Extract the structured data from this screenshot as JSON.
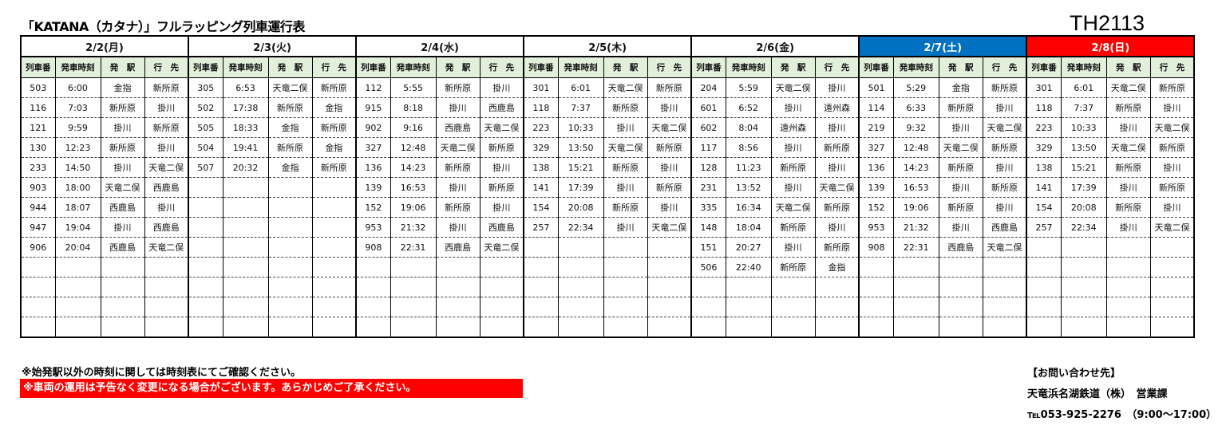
{
  "title": "「KATANA（カタナ）」フルラッピング列車運行表",
  "code": "TH2113",
  "columns": [
    "列車番",
    "発車時刻",
    "発　駅",
    "行　先"
  ],
  "colors": {
    "saturday": "#0070c0",
    "sunday": "#ff0000",
    "header_bg": "#e2efda",
    "notice_bg": "#ff0000"
  },
  "days": [
    {
      "label": "2/2(月)",
      "rows": [
        [
          "503",
          "6:00",
          "金指",
          "新所原"
        ],
        [
          "116",
          "7:03",
          "新所原",
          "掛川"
        ],
        [
          "121",
          "9:59",
          "掛川",
          "新所原"
        ],
        [
          "130",
          "12:23",
          "新所原",
          "掛川"
        ],
        [
          "233",
          "14:50",
          "掛川",
          "天竜二俣"
        ],
        [
          "903",
          "18:00",
          "天竜二俣",
          "西鹿島"
        ],
        [
          "944",
          "18:07",
          "西鹿島",
          "掛川"
        ],
        [
          "947",
          "19:04",
          "掛川",
          "西鹿島"
        ],
        [
          "906",
          "20:04",
          "西鹿島",
          "天竜二俣"
        ]
      ]
    },
    {
      "label": "2/3(火)",
      "rows": [
        [
          "305",
          "6:53",
          "天竜二俣",
          "新所原"
        ],
        [
          "502",
          "17:38",
          "新所原",
          "金指"
        ],
        [
          "505",
          "18:33",
          "金指",
          "新所原"
        ],
        [
          "504",
          "19:41",
          "新所原",
          "金指"
        ],
        [
          "507",
          "20:32",
          "金指",
          "新所原"
        ]
      ]
    },
    {
      "label": "2/4(水)",
      "rows": [
        [
          "112",
          "5:55",
          "新所原",
          "掛川"
        ],
        [
          "915",
          "8:18",
          "掛川",
          "西鹿島"
        ],
        [
          "902",
          "9:16",
          "西鹿島",
          "天竜二俣"
        ],
        [
          "327",
          "12:48",
          "天竜二俣",
          "新所原"
        ],
        [
          "136",
          "14:23",
          "新所原",
          "掛川"
        ],
        [
          "139",
          "16:53",
          "掛川",
          "新所原"
        ],
        [
          "152",
          "19:06",
          "新所原",
          "掛川"
        ],
        [
          "953",
          "21:32",
          "掛川",
          "西鹿島"
        ],
        [
          "908",
          "22:31",
          "西鹿島",
          "天竜二俣"
        ]
      ]
    },
    {
      "label": "2/5(木)",
      "rows": [
        [
          "301",
          "6:01",
          "天竜二俣",
          "新所原"
        ],
        [
          "118",
          "7:37",
          "新所原",
          "掛川"
        ],
        [
          "223",
          "10:33",
          "掛川",
          "天竜二俣"
        ],
        [
          "329",
          "13:50",
          "天竜二俣",
          "新所原"
        ],
        [
          "138",
          "15:21",
          "新所原",
          "掛川"
        ],
        [
          "141",
          "17:39",
          "掛川",
          "新所原"
        ],
        [
          "154",
          "20:08",
          "新所原",
          "掛川"
        ],
        [
          "257",
          "22:34",
          "掛川",
          "天竜二俣"
        ]
      ]
    },
    {
      "label": "2/6(金)",
      "rows": [
        [
          "204",
          "5:59",
          "天竜二俣",
          "掛川"
        ],
        [
          "601",
          "6:52",
          "掛川",
          "遠州森"
        ],
        [
          "602",
          "8:04",
          "遠州森",
          "掛川"
        ],
        [
          "117",
          "8:56",
          "掛川",
          "新所原"
        ],
        [
          "128",
          "11:23",
          "新所原",
          "掛川"
        ],
        [
          "231",
          "13:52",
          "掛川",
          "天竜二俣"
        ],
        [
          "335",
          "16:34",
          "天竜二俣",
          "新所原"
        ],
        [
          "148",
          "18:04",
          "新所原",
          "掛川"
        ],
        [
          "151",
          "20:27",
          "掛川",
          "新所原"
        ],
        [
          "506",
          "22:40",
          "新所原",
          "金指"
        ]
      ]
    },
    {
      "label": "2/7(土)",
      "rows": [
        [
          "501",
          "5:29",
          "金指",
          "新所原"
        ],
        [
          "114",
          "6:33",
          "新所原",
          "掛川"
        ],
        [
          "219",
          "9:32",
          "掛川",
          "天竜二俣"
        ],
        [
          "327",
          "12:48",
          "天竜二俣",
          "新所原"
        ],
        [
          "136",
          "14:23",
          "新所原",
          "掛川"
        ],
        [
          "139",
          "16:53",
          "掛川",
          "新所原"
        ],
        [
          "152",
          "19:06",
          "新所原",
          "掛川"
        ],
        [
          "953",
          "21:32",
          "掛川",
          "西鹿島"
        ],
        [
          "908",
          "22:31",
          "西鹿島",
          "天竜二俣"
        ]
      ]
    },
    {
      "label": "2/8(日)",
      "rows": [
        [
          "301",
          "6:01",
          "天竜二俣",
          "新所原"
        ],
        [
          "118",
          "7:37",
          "新所原",
          "掛川"
        ],
        [
          "223",
          "10:33",
          "掛川",
          "天竜二俣"
        ],
        [
          "329",
          "13:50",
          "天竜二俣",
          "新所原"
        ],
        [
          "138",
          "15:21",
          "新所原",
          "掛川"
        ],
        [
          "141",
          "17:39",
          "掛川",
          "新所原"
        ],
        [
          "154",
          "20:08",
          "新所原",
          "掛川"
        ],
        [
          "257",
          "22:34",
          "掛川",
          "天竜二俣"
        ]
      ]
    }
  ],
  "notes": {
    "note1": "※始発駅以外の時刻に関しては時刻表にてご確認ください。",
    "note2": "※車両の運用は予告なく変更になる場合がございます。あらかじめご了承ください。"
  },
  "contact": {
    "heading": "【お問い合わせ先】",
    "company": "天竜浜名湖鉄道（株）　営業課",
    "tel": "℡053-925-2276　（9:00～17:00）"
  }
}
